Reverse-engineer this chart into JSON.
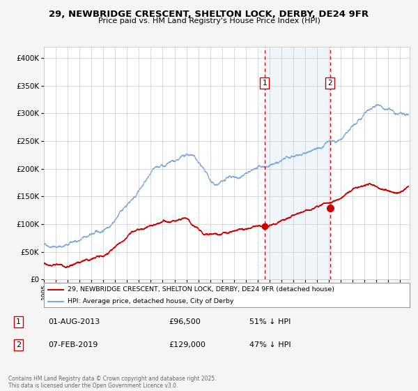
{
  "title": "29, NEWBRIDGE CRESCENT, SHELTON LOCK, DERBY, DE24 9FR",
  "subtitle": "Price paid vs. HM Land Registry's House Price Index (HPI)",
  "legend_entries": [
    "29, NEWBRIDGE CRESCENT, SHELTON LOCK, DERBY, DE24 9FR (detached house)",
    "HPI: Average price, detached house, City of Derby"
  ],
  "red_line_color": "#cc0000",
  "blue_line_color": "#7aaadd",
  "fig_bg_color": "#f5f5f5",
  "plot_bg_color": "#ffffff",
  "annotation1_date": "01-AUG-2013",
  "annotation1_price": "£96,500",
  "annotation1_hpi": "51% ↓ HPI",
  "annotation2_date": "07-FEB-2019",
  "annotation2_price": "£129,000",
  "annotation2_hpi": "47% ↓ HPI",
  "footnote": "Contains HM Land Registry data © Crown copyright and database right 2025.\nThis data is licensed under the Open Government Licence v3.0.",
  "ylim": [
    0,
    420000
  ],
  "yticks": [
    0,
    50000,
    100000,
    150000,
    200000,
    250000,
    300000,
    350000,
    400000
  ],
  "ytick_labels": [
    "£0",
    "£50K",
    "£100K",
    "£150K",
    "£200K",
    "£250K",
    "£300K",
    "£350K",
    "£400K"
  ],
  "marker1_x": 2013.58,
  "marker1_y": 96500,
  "marker2_x": 2019.09,
  "marker2_y": 129000,
  "shade_start": 2013.58,
  "shade_end": 2019.09,
  "xlim_start": 1995.0,
  "xlim_end": 2025.8
}
